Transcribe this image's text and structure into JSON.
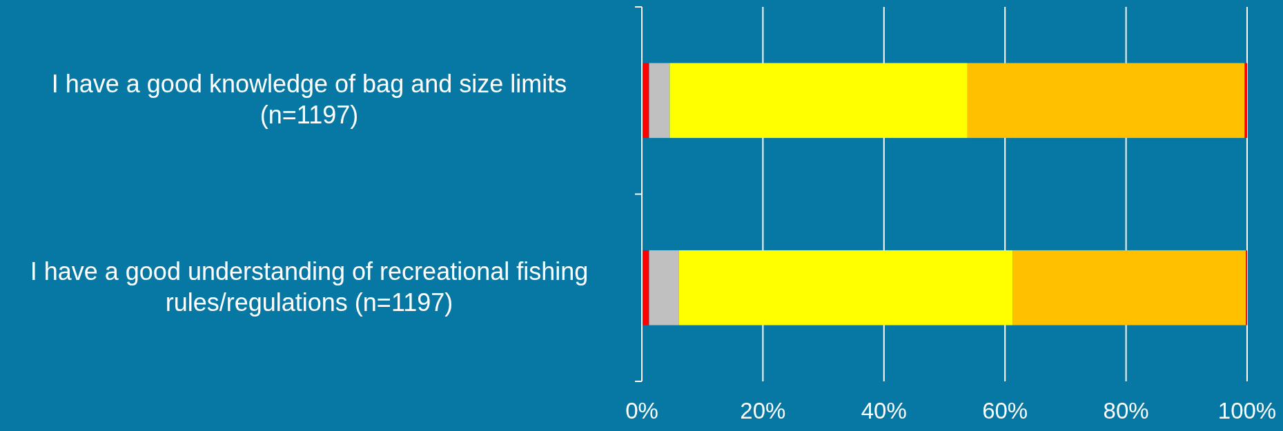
{
  "chart_data": {
    "type": "bar",
    "orientation": "horizontal",
    "stacked": true,
    "categories": [
      "I have a good knowledge of bag and size limits (n=1197)",
      "I have a good understanding of recreational fishing rules/regulations (n=1197)"
    ],
    "series": [
      {
        "color": "#ff0000",
        "values": [
          1.2,
          1.2
        ]
      },
      {
        "color": "#c0c0c0",
        "values": [
          3.4,
          4.9
        ]
      },
      {
        "color": "#ffff00",
        "values": [
          49.2,
          55.2
        ]
      },
      {
        "color": "#ffc000",
        "values": [
          45.8,
          38.5
        ]
      },
      {
        "color": "#ff0000",
        "values": [
          0.4,
          0.2
        ]
      }
    ],
    "xlim": [
      0,
      100
    ],
    "xticks": [
      {
        "value": 0,
        "label": "0%"
      },
      {
        "value": 20,
        "label": "20%"
      },
      {
        "value": 40,
        "label": "40%"
      },
      {
        "value": 60,
        "label": "60%"
      },
      {
        "value": 80,
        "label": "80%"
      },
      {
        "value": 100,
        "label": "100%"
      }
    ],
    "grid": "x"
  }
}
